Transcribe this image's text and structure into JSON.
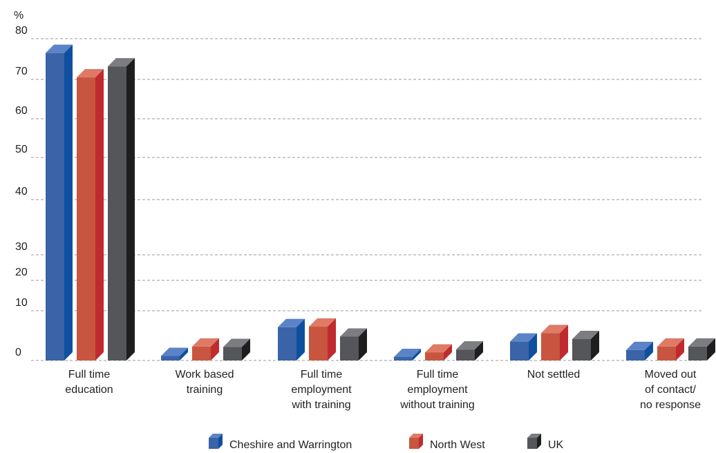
{
  "chart_data": {
    "type": "bar",
    "title": "",
    "ylabel": "%",
    "xlabel": "",
    "ylim": [
      0,
      80
    ],
    "yticks": [
      0,
      10,
      20,
      30,
      40,
      50,
      60,
      70,
      80
    ],
    "grid": true,
    "legend_position": "bottom-center",
    "categories": [
      [
        "Full time",
        "education"
      ],
      [
        "Work based",
        "training"
      ],
      [
        "Full time",
        "employment",
        "with training"
      ],
      [
        "Full time",
        "employment",
        "without training"
      ],
      [
        "Not settled"
      ],
      [
        "Moved out",
        "of contact/",
        "no response"
      ]
    ],
    "series": [
      {
        "name": "Cheshire and Warrington",
        "color": "#3a63a8",
        "side_color": "#0f4fa0",
        "top_color": "#5b83c8",
        "values": [
          76.5,
          0.9,
          6.7,
          0.7,
          3.8,
          2.1
        ]
      },
      {
        "name": "North West",
        "color": "#c8553f",
        "side_color": "#c02b2f",
        "top_color": "#de7a66",
        "values": [
          70.5,
          2.8,
          6.8,
          1.6,
          5.5,
          2.8
        ]
      },
      {
        "name": "UK",
        "color": "#555659",
        "side_color": "#1e1e1e",
        "top_color": "#7c7d80",
        "values": [
          73.2,
          2.7,
          4.8,
          2.2,
          4.3,
          2.8
        ]
      }
    ]
  }
}
